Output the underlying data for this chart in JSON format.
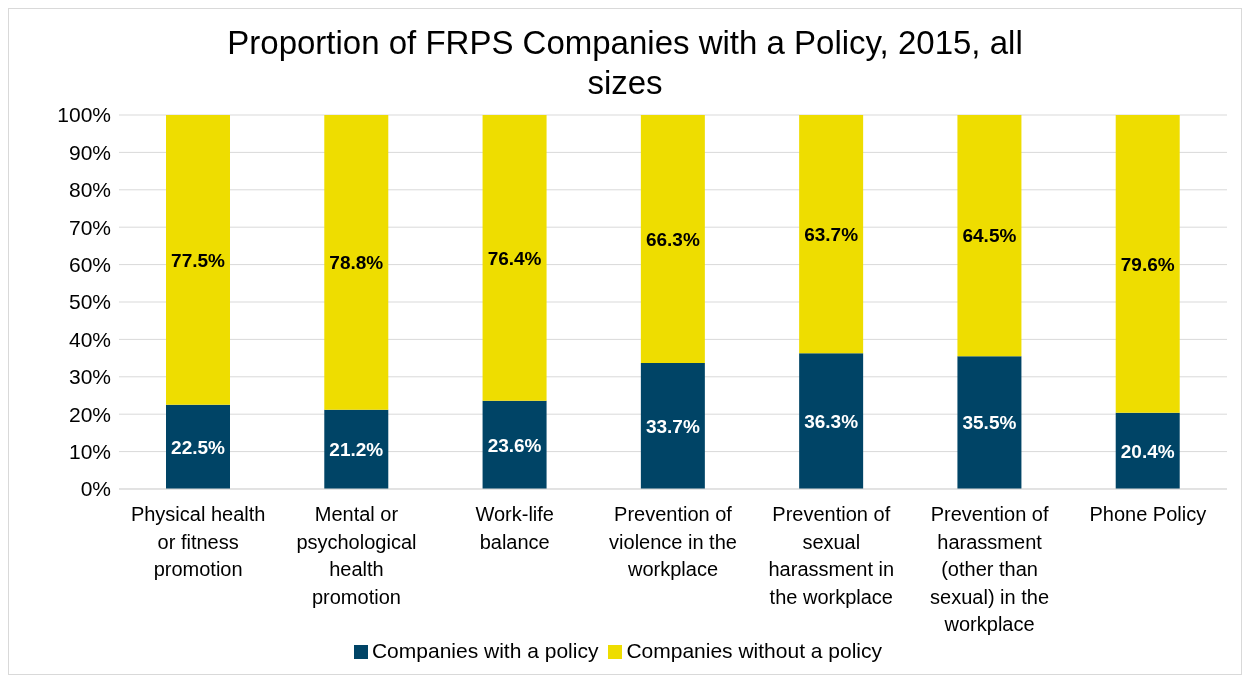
{
  "chart_data": {
    "type": "bar",
    "title": "Proportion of FRPS Companies with a Policy, 2015, all sizes",
    "stacked": true,
    "categories": [
      "Physical health or fitness promotion",
      "Mental or psychological health promotion",
      "Work-life balance",
      "Prevention of violence in the workplace",
      "Prevention of sexual harassment in the workplace",
      "Prevention of harassment (other than sexual) in the workplace",
      "Phone Policy"
    ],
    "series": [
      {
        "name": "Companies with a policy",
        "color": "#004466",
        "values": [
          22.5,
          21.2,
          23.6,
          33.7,
          36.3,
          35.5,
          20.4
        ],
        "value_labels": [
          "22.5%",
          "21.2%",
          "23.6%",
          "33.7%",
          "36.3%",
          "35.5%",
          "20.4%"
        ]
      },
      {
        "name": "Companies without a policy",
        "color": "#eedd00",
        "values": [
          77.5,
          78.8,
          76.4,
          66.3,
          63.7,
          64.5,
          79.6
        ],
        "value_labels": [
          "77.5%",
          "78.8%",
          "76.4%",
          "66.3%",
          "63.7%",
          "64.5%",
          "79.6%"
        ]
      }
    ],
    "ylim": [
      0,
      100
    ],
    "yticks": [
      {
        "value": 0,
        "label": "0%"
      },
      {
        "value": 10,
        "label": "10%"
      },
      {
        "value": 20,
        "label": "20%"
      },
      {
        "value": 30,
        "label": "30%"
      },
      {
        "value": 40,
        "label": "40%"
      },
      {
        "value": 50,
        "label": "50%"
      },
      {
        "value": 60,
        "label": "60%"
      },
      {
        "value": 70,
        "label": "70%"
      },
      {
        "value": 80,
        "label": "80%"
      },
      {
        "value": 90,
        "label": "90%"
      },
      {
        "value": 100,
        "label": "100%"
      }
    ],
    "grid": "y",
    "legend": "bottom"
  }
}
